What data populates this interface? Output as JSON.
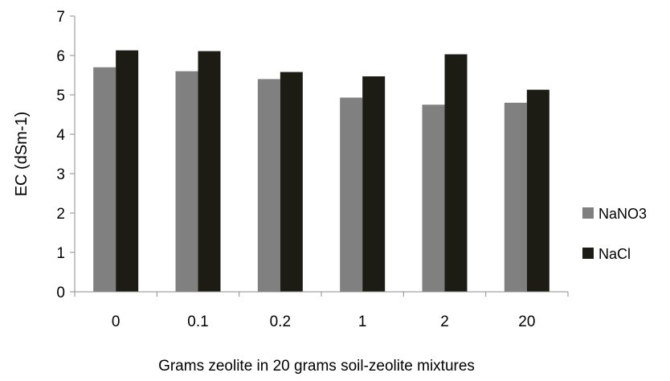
{
  "chart_data": {
    "type": "bar",
    "title": "",
    "xlabel": "Grams zeolite in 20 grams soil-zeolite mixtures",
    "ylabel": "EC (dSm-1)",
    "categories": [
      "0",
      "0.1",
      "0.2",
      "1",
      "2",
      "20"
    ],
    "series": [
      {
        "name": "NaNO3",
        "color": "#808080",
        "values": [
          5.7,
          5.6,
          5.4,
          4.93,
          4.75,
          4.8
        ]
      },
      {
        "name": "NaCl",
        "color": "#1c1c14",
        "values": [
          6.13,
          6.11,
          5.58,
          5.47,
          6.03,
          5.13
        ]
      }
    ],
    "ylim": [
      0,
      7
    ],
    "yticks": [
      "0",
      "1",
      "2",
      "3",
      "4",
      "5",
      "6",
      "7"
    ],
    "grid": false,
    "legend_position": "right"
  }
}
